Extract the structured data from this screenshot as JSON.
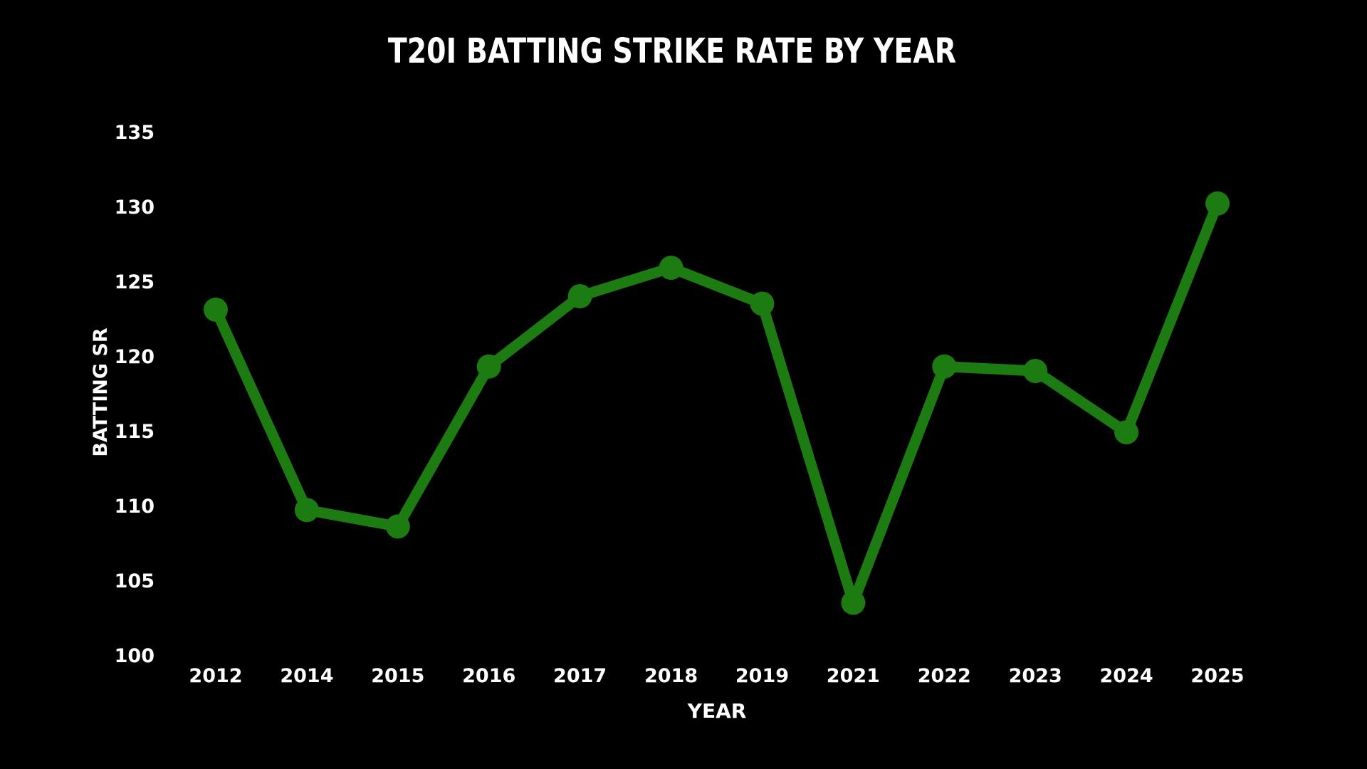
{
  "chart_data": {
    "type": "line",
    "title": "T20I BATTING STRIKE RATE BY YEAR",
    "xlabel": "YEAR",
    "ylabel": "BATTING SR",
    "categories": [
      "2012",
      "2014",
      "2015",
      "2016",
      "2017",
      "2018",
      "2019",
      "2021",
      "2022",
      "2023",
      "2024",
      "2025"
    ],
    "series": [
      {
        "values": [
          123.1,
          109.7,
          108.6,
          119.3,
          124.0,
          125.9,
          123.5,
          103.5,
          119.3,
          119.0,
          114.9,
          130.2
        ]
      }
    ],
    "ylim": [
      100,
      135
    ],
    "yticks": [
      100,
      105,
      110,
      115,
      120,
      125,
      130,
      135
    ],
    "grid": false,
    "legend": "none",
    "colors": {
      "background": "#000000",
      "line": "#1c7c12",
      "text": "#ffffff"
    }
  }
}
